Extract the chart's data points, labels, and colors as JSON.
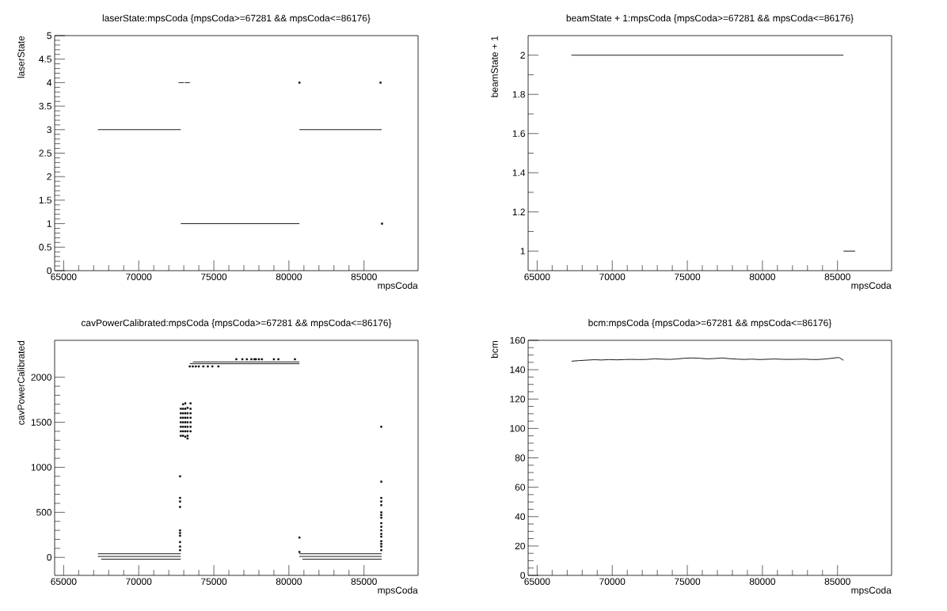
{
  "chart_data": [
    {
      "type": "line",
      "title": "laserState:mpsCoda {mpsCoda>=67281 && mpsCoda<=86176}",
      "xlabel": "mpsCoda",
      "ylabel": "laserState",
      "xlim": [
        64400,
        88600
      ],
      "xticks": [
        65000,
        70000,
        75000,
        80000,
        85000
      ],
      "ylim": [
        0,
        5
      ],
      "yticks": [
        0,
        0.5,
        1,
        1.5,
        2,
        2.5,
        3,
        3.5,
        4,
        4.5,
        5
      ],
      "series": [
        {
          "color": "#000000",
          "x": [
            67281,
            72800,
            76000,
            80700,
            86176
          ],
          "values": [
            3,
            3,
            null,
            3,
            3
          ]
        },
        {
          "color": "#000000",
          "x": [
            72800,
            80700
          ],
          "values": [
            1,
            1
          ]
        },
        {
          "color": "#000000",
          "x": [
            72650,
            73010,
            73030,
            73060,
            73410
          ],
          "values": [
            4,
            4,
            null,
            4,
            4
          ]
        },
        {
          "type": "scatter",
          "marker": "square",
          "color": "#000000",
          "x": [
            80700,
            86100,
            86200
          ],
          "values": [
            4,
            4,
            1
          ]
        }
      ]
    },
    {
      "type": "line",
      "title": "beamState + 1:mpsCoda {mpsCoda>=67281 && mpsCoda<=86176}",
      "xlabel": "mpsCoda",
      "ylabel": "beamState + 1",
      "xlim": [
        64400,
        88600
      ],
      "xticks": [
        65000,
        70000,
        75000,
        80000,
        85000
      ],
      "ylim": [
        0.9,
        2.1
      ],
      "yticks": [
        1,
        1.2,
        1.4,
        1.6,
        1.8,
        2
      ],
      "series": [
        {
          "color": "#000000",
          "x": [
            67281,
            85400
          ],
          "values": [
            2,
            2
          ]
        },
        {
          "color": "#000000",
          "x": [
            85400,
            86176
          ],
          "values": [
            1,
            1
          ]
        }
      ]
    },
    {
      "type": "line",
      "title": "cavPowerCalibrated:mpsCoda {mpsCoda>=67281 && mpsCoda<=86176}",
      "xlabel": "mpsCoda",
      "ylabel": "cavPowerCalibrated",
      "xlim": [
        64400,
        88600
      ],
      "xticks": [
        65000,
        70000,
        75000,
        80000,
        85000
      ],
      "ylim": [
        -200,
        2410
      ],
      "yticks": [
        0,
        500,
        1000,
        1500,
        2000
      ],
      "series": [
        {
          "color": "#000000",
          "x": [
            67281,
            72800,
            76000,
            80700,
            86176
          ],
          "values": [
            40,
            40,
            null,
            40,
            40
          ]
        },
        {
          "color": "#000000",
          "x": [
            67281,
            72800,
            76000,
            80700,
            86176
          ],
          "values": [
            10,
            10,
            null,
            10,
            10
          ]
        },
        {
          "color": "#000000",
          "x": [
            67500,
            72800,
            76000,
            80900,
            86176
          ],
          "values": [
            -20,
            -20,
            null,
            -20,
            -20
          ]
        },
        {
          "color": "#000000",
          "x": [
            73600,
            80700
          ],
          "values": [
            2170,
            2170
          ]
        },
        {
          "color": "#000000",
          "x": [
            73400,
            80700
          ],
          "values": [
            2150,
            2150
          ]
        },
        {
          "type": "scatter",
          "marker": "square",
          "color": "#000000",
          "x": [
            73400,
            73600,
            73800,
            74000,
            74300,
            74600,
            74900,
            75300,
            76500,
            76900,
            77200,
            77500,
            77700,
            77800,
            78000,
            78200,
            79000,
            79300,
            80400
          ],
          "values": [
            2120,
            2120,
            2120,
            2120,
            2120,
            2120,
            2120,
            2120,
            2200,
            2200,
            2200,
            2200,
            2200,
            2200,
            2200,
            2200,
            2200,
            2200,
            2200
          ]
        },
        {
          "type": "scatter",
          "marker": "square",
          "color": "#000000",
          "x": [
            72800,
            72800,
            72800,
            72800,
            72800,
            72800,
            72800,
            72950,
            72950,
            72950,
            72950,
            72950,
            72950,
            72950,
            72950,
            73100,
            73100,
            73100,
            73100,
            73100,
            73100,
            73100,
            73100,
            73250,
            73250,
            73250,
            73250,
            73250,
            73250,
            73250,
            73250,
            73450,
            73450,
            73450,
            73450,
            73450,
            73450,
            73450
          ],
          "values": [
            1650,
            1600,
            1550,
            1500,
            1450,
            1400,
            1350,
            1700,
            1650,
            1600,
            1550,
            1500,
            1450,
            1400,
            1350,
            1710,
            1650,
            1600,
            1550,
            1500,
            1450,
            1400,
            1340,
            1660,
            1600,
            1550,
            1500,
            1450,
            1400,
            1350,
            1320,
            1710,
            1650,
            1600,
            1550,
            1500,
            1450,
            1400
          ]
        },
        {
          "type": "scatter",
          "marker": "square",
          "color": "#000000",
          "x": [
            72750,
            72750,
            72750,
            72750,
            72750,
            72750,
            72750,
            72750,
            72750,
            72750,
            80700,
            80700,
            86150,
            86150,
            86150,
            86150,
            86150,
            86150,
            86150,
            86150,
            86150,
            86150,
            86150,
            86150,
            86150,
            86150,
            86150,
            86150,
            86150
          ],
          "values": [
            900,
            660,
            620,
            560,
            300,
            270,
            240,
            170,
            120,
            80,
            220,
            60,
            1450,
            840,
            660,
            620,
            580,
            500,
            470,
            440,
            380,
            340,
            300,
            260,
            230,
            180,
            150,
            120,
            80
          ]
        }
      ]
    },
    {
      "type": "line",
      "title": "bcm:mpsCoda {mpsCoda>=67281 && mpsCoda<=86176}",
      "xlabel": "mpsCoda",
      "ylabel": "bcm",
      "xlim": [
        64400,
        88600
      ],
      "xticks": [
        65000,
        70000,
        75000,
        80000,
        85000
      ],
      "ylim": [
        0,
        160
      ],
      "yticks": [
        0,
        20,
        40,
        60,
        80,
        100,
        120,
        140,
        160
      ],
      "series": [
        {
          "color": "#000000",
          "x": [
            67300,
            67800,
            68300,
            68800,
            69300,
            69800,
            70300,
            70800,
            71300,
            71800,
            72300,
            72800,
            73300,
            73800,
            74300,
            74800,
            75300,
            75800,
            76300,
            76800,
            77300,
            77800,
            78300,
            78800,
            79300,
            79800,
            80300,
            80800,
            81300,
            81800,
            82300,
            82800,
            83300,
            83800,
            84300,
            84800,
            85100,
            85400
          ],
          "values": [
            145.8,
            146.2,
            146.5,
            146.8,
            146.6,
            146.9,
            146.7,
            146.9,
            147.0,
            146.9,
            147.0,
            147.4,
            147.2,
            147.0,
            147.3,
            147.8,
            148.0,
            147.8,
            147.4,
            147.6,
            148.0,
            147.5,
            147.2,
            147.0,
            147.2,
            146.9,
            147.1,
            147.3,
            147.1,
            147.0,
            147.1,
            147.2,
            146.9,
            147.0,
            147.4,
            148.0,
            148.3,
            146.4
          ]
        }
      ]
    }
  ]
}
